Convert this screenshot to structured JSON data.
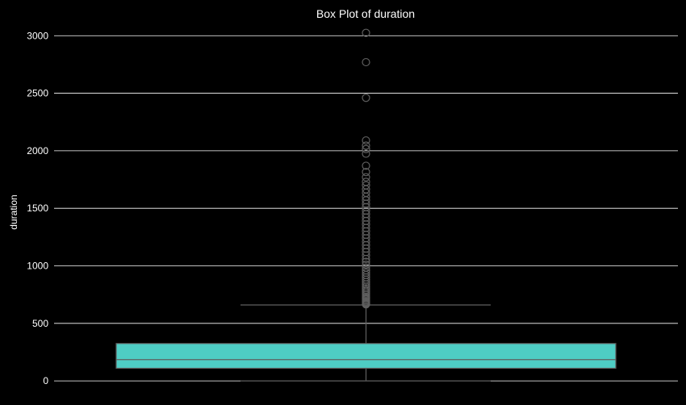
{
  "chart_data": {
    "type": "box",
    "title": "Box Plot of duration",
    "xlabel": "",
    "ylabel": "duration",
    "ylim": [
      -20,
      3100
    ],
    "yticks": [
      0,
      500,
      1000,
      1500,
      2000,
      2500,
      3000
    ],
    "grid": true,
    "colors": {
      "background": "#000000",
      "box_fill": "#4ecdc4",
      "box_edge": "#5f5f5f",
      "whisker": "#5f5f5f",
      "flier": "#5f5f5f",
      "grid": "#ffffff",
      "text": "#ffffff"
    },
    "series": [
      {
        "box": {
          "whisker_low": 0,
          "q1": 110,
          "median": 185,
          "q3": 325,
          "whisker_high": 660
        },
        "outliers": [
          665,
          670,
          675,
          680,
          690,
          700,
          710,
          720,
          730,
          745,
          760,
          775,
          790,
          805,
          820,
          840,
          860,
          880,
          900,
          920,
          940,
          960,
          985,
          1010,
          1035,
          1060,
          1090,
          1120,
          1150,
          1180,
          1210,
          1240,
          1270,
          1300,
          1330,
          1360,
          1390,
          1420,
          1450,
          1480,
          1510,
          1540,
          1570,
          1600,
          1635,
          1665,
          1700,
          1730,
          1770,
          1815,
          1870,
          1975,
          2015,
          2045,
          2090,
          2460,
          2770,
          3025
        ]
      }
    ]
  }
}
